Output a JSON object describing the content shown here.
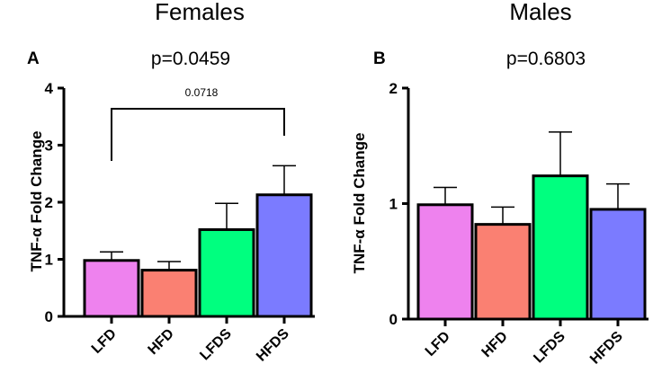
{
  "chart_data": [
    {
      "type": "bar",
      "panel_label": "A",
      "title": "Females",
      "subtitle": "p=0.0459",
      "ylabel": "TNF-α Fold  Change",
      "xlabel": "",
      "categories": [
        "LFD",
        "HFD",
        "LFDS",
        "HFDS"
      ],
      "values": [
        0.98,
        0.81,
        1.52,
        2.13
      ],
      "errors": [
        0.15,
        0.15,
        0.46,
        0.51
      ],
      "colors": [
        "#ee82ee",
        "#fa8072",
        "#00ff7f",
        "#7b7bff"
      ],
      "ylim": [
        0,
        4
      ],
      "yticks": [
        "0",
        "1",
        "2",
        "3",
        "4"
      ],
      "annotation": {
        "text": "0.0718",
        "from": "LFD",
        "to": "HFDS"
      }
    },
    {
      "type": "bar",
      "panel_label": "B",
      "title": "Males",
      "subtitle": "p=0.6803",
      "ylabel": "TNF-α Fold  Change",
      "xlabel": "",
      "categories": [
        "LFD",
        "HFD",
        "LFDS",
        "HFDS"
      ],
      "values": [
        0.99,
        0.82,
        1.24,
        0.95
      ],
      "errors": [
        0.15,
        0.15,
        0.38,
        0.22
      ],
      "colors": [
        "#ee82ee",
        "#fa8072",
        "#00ff7f",
        "#7b7bff"
      ],
      "ylim": [
        0,
        2
      ],
      "yticks": [
        "0",
        "1",
        "2"
      ]
    }
  ]
}
